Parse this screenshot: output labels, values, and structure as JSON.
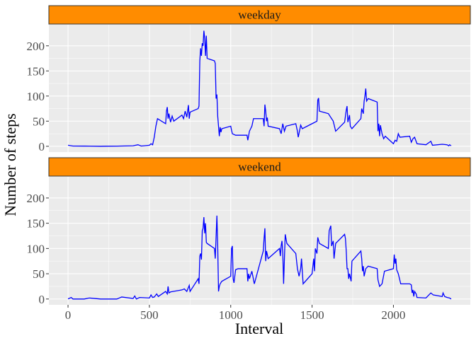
{
  "axis_labels": {
    "x": "Interval",
    "y": "Number of steps"
  },
  "chart_data": [
    {
      "type": "line",
      "title": "weekday",
      "color": "#0000FF",
      "grid": true,
      "xlim": [
        -117.75,
        2472.75
      ],
      "ylim": [
        -11.5,
        241.9
      ],
      "xticks": [
        0,
        500,
        1000,
        1500,
        2000
      ],
      "yticks": [
        0,
        50,
        100,
        150,
        200
      ],
      "x": [
        0,
        30,
        100,
        200,
        230,
        300,
        400,
        430,
        450,
        500,
        510,
        520,
        530,
        540,
        550,
        600,
        605,
        610,
        615,
        620,
        630,
        640,
        650,
        700,
        710,
        720,
        730,
        740,
        745,
        750,
        800,
        805,
        810,
        815,
        820,
        825,
        830,
        835,
        840,
        845,
        850,
        855,
        900,
        905,
        910,
        915,
        920,
        925,
        930,
        935,
        940,
        945,
        1000,
        1005,
        1010,
        1030,
        1100,
        1105,
        1115,
        1130,
        1140,
        1200,
        1205,
        1210,
        1215,
        1220,
        1225,
        1230,
        1300,
        1310,
        1320,
        1330,
        1340,
        1400,
        1410,
        1415,
        1430,
        1440,
        1500,
        1530,
        1535,
        1540,
        1545,
        1600,
        1630,
        1645,
        1700,
        1710,
        1715,
        1720,
        1730,
        1735,
        1745,
        1800,
        1805,
        1815,
        1820,
        1825,
        1830,
        1835,
        1845,
        1900,
        1905,
        1910,
        1915,
        1920,
        1930,
        1940,
        1950,
        2000,
        2010,
        2020,
        2030,
        2040,
        2100,
        2110,
        2120,
        2130,
        2145,
        2200,
        2230,
        2240,
        2300,
        2330,
        2340,
        2345,
        2355
      ],
      "values": [
        2,
        0.5,
        0.4,
        0,
        0.2,
        0.3,
        1,
        3,
        0.5,
        2,
        5,
        3,
        18,
        40,
        55,
        45,
        70,
        78,
        55,
        65,
        48,
        60,
        50,
        62,
        55,
        70,
        58,
        82,
        55,
        68,
        75,
        80,
        170,
        195,
        180,
        205,
        200,
        230,
        215,
        180,
        220,
        175,
        170,
        165,
        95,
        103,
        60,
        40,
        20,
        38,
        28,
        35,
        40,
        32,
        25,
        22,
        22,
        12,
        30,
        40,
        55,
        55,
        40,
        83,
        70,
        50,
        57,
        40,
        35,
        25,
        45,
        30,
        40,
        45,
        30,
        18,
        42,
        35,
        45,
        50,
        92,
        96,
        70,
        65,
        50,
        30,
        48,
        72,
        80,
        48,
        62,
        40,
        35,
        55,
        75,
        65,
        90,
        100,
        115,
        90,
        95,
        88,
        30,
        45,
        20,
        42,
        25,
        15,
        20,
        5,
        12,
        10,
        25,
        18,
        20,
        8,
        15,
        18,
        5,
        3,
        10,
        2,
        4,
        3,
        1,
        3,
        1
      ]
    },
    {
      "type": "line",
      "title": "weekend",
      "color": "#0000FF",
      "grid": true,
      "xlim": [
        -117.75,
        2472.75
      ],
      "ylim": [
        -11.5,
        241.9
      ],
      "xticks": [
        0,
        500,
        1000,
        1500,
        2000
      ],
      "yticks": [
        0,
        50,
        100,
        150,
        200
      ],
      "x": [
        0,
        20,
        30,
        100,
        130,
        200,
        300,
        330,
        400,
        410,
        420,
        440,
        500,
        510,
        520,
        530,
        545,
        555,
        600,
        610,
        615,
        620,
        630,
        700,
        715,
        730,
        745,
        750,
        800,
        805,
        810,
        815,
        820,
        825,
        830,
        835,
        840,
        845,
        850,
        855,
        900,
        905,
        915,
        920,
        925,
        930,
        935,
        945,
        1000,
        1005,
        1010,
        1015,
        1020,
        1030,
        1045,
        1100,
        1105,
        1110,
        1115,
        1130,
        1145,
        1200,
        1205,
        1210,
        1215,
        1220,
        1230,
        1300,
        1305,
        1310,
        1315,
        1320,
        1325,
        1330,
        1335,
        1345,
        1400,
        1410,
        1420,
        1430,
        1435,
        1445,
        1500,
        1510,
        1515,
        1520,
        1530,
        1535,
        1545,
        1600,
        1605,
        1610,
        1615,
        1620,
        1630,
        1635,
        1645,
        1700,
        1705,
        1710,
        1715,
        1720,
        1725,
        1730,
        1740,
        1745,
        1800,
        1805,
        1810,
        1815,
        1820,
        1830,
        1845,
        1900,
        1905,
        1915,
        1930,
        1945,
        2000,
        2005,
        2010,
        2015,
        2020,
        2030,
        2045,
        2100,
        2110,
        2115,
        2120,
        2125,
        2130,
        2140,
        2145,
        2200,
        2230,
        2245,
        2300,
        2305,
        2315,
        2330,
        2345,
        2355
      ],
      "values": [
        0.2,
        3,
        0,
        0,
        2,
        0,
        0,
        4,
        1,
        6,
        0,
        3,
        2,
        8,
        3,
        4,
        10,
        5,
        15,
        10,
        25,
        12,
        14,
        18,
        20,
        15,
        27,
        15,
        40,
        30,
        85,
        90,
        78,
        135,
        140,
        162,
        130,
        150,
        112,
        110,
        100,
        80,
        165,
        105,
        15,
        25,
        30,
        35,
        45,
        100,
        105,
        40,
        32,
        58,
        60,
        60,
        35,
        50,
        40,
        55,
        30,
        95,
        120,
        140,
        75,
        95,
        80,
        100,
        85,
        105,
        115,
        90,
        30,
        80,
        128,
        110,
        90,
        60,
        45,
        60,
        80,
        30,
        50,
        80,
        55,
        100,
        90,
        122,
        110,
        100,
        135,
        140,
        145,
        105,
        115,
        80,
        110,
        128,
        120,
        95,
        60,
        60,
        40,
        50,
        35,
        75,
        95,
        80,
        55,
        65,
        45,
        60,
        65,
        60,
        38,
        25,
        30,
        55,
        60,
        88,
        70,
        80,
        58,
        50,
        30,
        30,
        28,
        12,
        18,
        5,
        15,
        10,
        3,
        2,
        12,
        8,
        5,
        12,
        5,
        3,
        2,
        0
      ]
    }
  ]
}
